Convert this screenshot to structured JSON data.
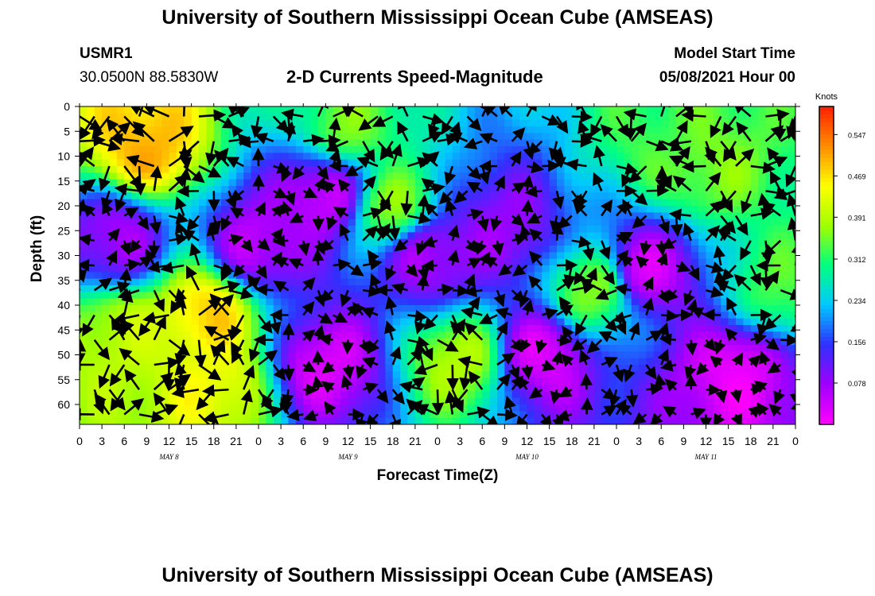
{
  "header": {
    "title": "University of Southern Mississippi Ocean Cube (AMSEAS)",
    "station": "USMR1",
    "coords": "30.0500N  88.5830W",
    "plot_title": "2-D Currents Speed-Magnitude",
    "model_start_label": "Model Start Time",
    "model_start_value": "05/08/2021 Hour 00"
  },
  "footer": {
    "title": "University of Southern Mississippi Ocean Cube (AMSEAS)"
  },
  "chart_data": {
    "type": "heatmap",
    "title": "2-D Currents Speed-Magnitude",
    "xlabel": "Forecast Time(Z)",
    "ylabel": "Depth (ft)",
    "x_tick_labels": [
      "0",
      "3",
      "6",
      "9",
      "12",
      "15",
      "18",
      "21",
      "0",
      "3",
      "6",
      "9",
      "12",
      "15",
      "18",
      "21",
      "0",
      "3",
      "6",
      "9",
      "12",
      "15",
      "18",
      "21",
      "0",
      "3",
      "6",
      "9",
      "12",
      "15",
      "18",
      "21",
      "0"
    ],
    "x_hours_range": [
      0,
      96
    ],
    "day_labels": [
      {
        "label": "MAY 8",
        "hour": 12
      },
      {
        "label": "MAY 9",
        "hour": 36
      },
      {
        "label": "MAY 10",
        "hour": 60
      },
      {
        "label": "MAY 11",
        "hour": 84
      }
    ],
    "y_ticks": [
      0,
      5,
      10,
      15,
      20,
      25,
      30,
      35,
      40,
      45,
      50,
      55,
      60
    ],
    "ylim": [
      0,
      64
    ],
    "y_inverted": true,
    "colorbar": {
      "label": "Knots",
      "tick_labels": [
        "0.547",
        "0.469",
        "0.391",
        "0.312",
        "0.234",
        "0.156",
        "0.078"
      ],
      "tick_values": [
        0.547,
        0.469,
        0.391,
        0.312,
        0.234,
        0.156,
        0.078
      ],
      "range": [
        0.0,
        0.6
      ],
      "colors": [
        "#ff00ff",
        "#a000ff",
        "#3030ff",
        "#00c8ff",
        "#00ff80",
        "#a0ff00",
        "#ffff00",
        "#ff8c00",
        "#ff2000"
      ]
    },
    "speed_hotspots": [
      {
        "hour": 9,
        "depth": 8,
        "speed": 0.5
      },
      {
        "hour": 6,
        "depth": 46,
        "speed": 0.4
      },
      {
        "hour": 17,
        "depth": 42,
        "speed": 0.48
      },
      {
        "hour": 18,
        "depth": 56,
        "speed": 0.44
      },
      {
        "hour": 42,
        "depth": 20,
        "speed": 0.36
      },
      {
        "hour": 36,
        "depth": 4,
        "speed": 0.35
      },
      {
        "hour": 51,
        "depth": 51,
        "speed": 0.39
      },
      {
        "hour": 69,
        "depth": 37,
        "speed": 0.36
      },
      {
        "hour": 78,
        "depth": 6,
        "speed": 0.33
      },
      {
        "hour": 84,
        "depth": 12,
        "speed": 0.36
      },
      {
        "hour": 94,
        "depth": 36,
        "speed": 0.33
      },
      {
        "hour": 24,
        "depth": 28,
        "speed": 0.05
      },
      {
        "hour": 33,
        "depth": 18,
        "speed": 0.04
      },
      {
        "hour": 33,
        "depth": 52,
        "speed": 0.03
      },
      {
        "hour": 47,
        "depth": 30,
        "speed": 0.06
      },
      {
        "hour": 62,
        "depth": 50,
        "speed": 0.03
      },
      {
        "hour": 76,
        "depth": 33,
        "speed": 0.04
      },
      {
        "hour": 88,
        "depth": 54,
        "speed": 0.02
      },
      {
        "hour": 5,
        "depth": 27,
        "speed": 0.07
      },
      {
        "hour": 57,
        "depth": 25,
        "speed": 0.08
      }
    ]
  }
}
